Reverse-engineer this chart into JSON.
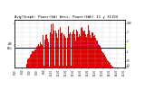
{
  "title": "Avg/Graph: Power(kW) West, Power(kWh) 11 y 31194",
  "ylabel_left": "kW/5Min",
  "ylabel_right": "kWh",
  "background_color": "#ffffff",
  "plot_bg_color": "#ffffff",
  "bar_color": "#dd0000",
  "avg_line_color": "#0000cc",
  "grid_color": "#bbbbbb",
  "num_bars": 144,
  "avg_line_y": 0.44,
  "x_tick_labels": [
    "5:00",
    "6:00",
    "7:00",
    "8:00",
    "9:00",
    "10:00",
    "11:00",
    "12:00",
    "13:00",
    "14:00",
    "15:00",
    "16:00",
    "17:00",
    "18:00",
    "19:00",
    "20:00"
  ],
  "left_y_labels": [
    "kW/\n5Min",
    "",
    "",
    "",
    "",
    ""
  ],
  "right_y_labels": [
    "3kW",
    "",
    "2",
    "",
    "1",
    "",
    "0.5",
    "",
    "0.1",
    "",
    "0"
  ]
}
